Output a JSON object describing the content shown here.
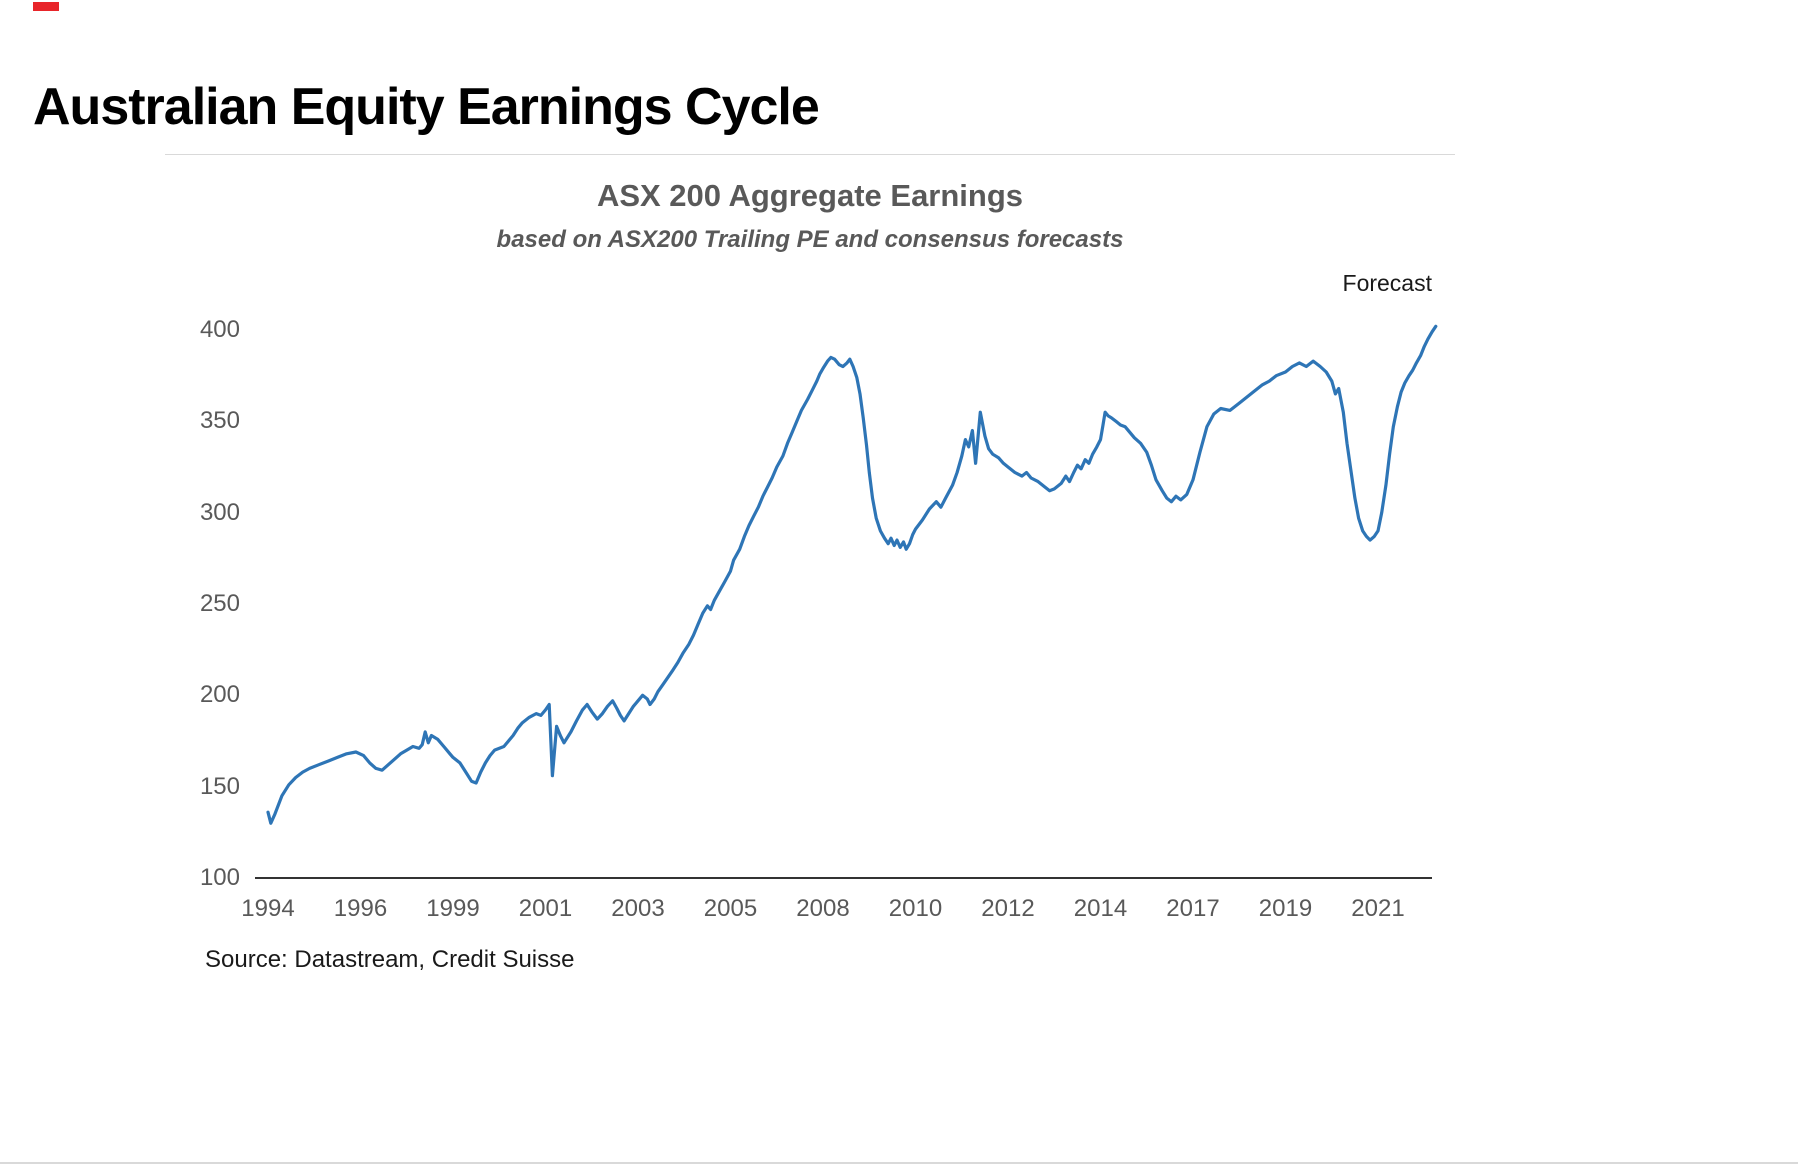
{
  "page": {
    "title": "Australian Equity Earnings Cycle",
    "source": "Source: Datastream,  Credit Suisse"
  },
  "chart_data": {
    "type": "line",
    "title": "ASX 200 Aggregate Earnings",
    "subtitle": "based on ASX200 Trailing PE and consensus forecasts",
    "forecast_label": "Forecast",
    "xlabel": "",
    "ylabel": "",
    "ylim": [
      100,
      410
    ],
    "grid": "off",
    "legend": "none",
    "line_color": "#2e75b6",
    "axis_label_color": "#595959",
    "title_color": "#595959",
    "x_tick_labels": [
      "1994",
      "1996",
      "1999",
      "2001",
      "2003",
      "2005",
      "2008",
      "2010",
      "2012",
      "2014",
      "2017",
      "2019",
      "2021"
    ],
    "x_tick_years": [
      1994,
      1996,
      1999,
      2001,
      2003,
      2005,
      2008,
      2010,
      2012,
      2014,
      2017,
      2019,
      2021
    ],
    "y_ticks": [
      100,
      150,
      200,
      250,
      300,
      350,
      400
    ],
    "series": [
      {
        "name": "ASX 200 Aggregate Earnings",
        "points": [
          [
            1994.0,
            136
          ],
          [
            1994.06,
            130
          ],
          [
            1994.15,
            135
          ],
          [
            1994.3,
            145
          ],
          [
            1994.45,
            151
          ],
          [
            1994.6,
            155
          ],
          [
            1994.75,
            158
          ],
          [
            1994.9,
            160
          ],
          [
            1995.1,
            162
          ],
          [
            1995.3,
            164
          ],
          [
            1995.5,
            166
          ],
          [
            1995.7,
            168
          ],
          [
            1995.9,
            169
          ],
          [
            1996.1,
            167
          ],
          [
            1996.3,
            163
          ],
          [
            1996.5,
            160
          ],
          [
            1996.7,
            159
          ],
          [
            1996.9,
            162
          ],
          [
            1997.1,
            165
          ],
          [
            1997.3,
            168
          ],
          [
            1997.5,
            170
          ],
          [
            1997.7,
            172
          ],
          [
            1997.9,
            171
          ],
          [
            1998.0,
            173
          ],
          [
            1998.1,
            180
          ],
          [
            1998.2,
            174
          ],
          [
            1998.3,
            178
          ],
          [
            1998.5,
            176
          ],
          [
            1998.7,
            172
          ],
          [
            1998.9,
            168
          ],
          [
            1999.0,
            166
          ],
          [
            1999.15,
            163
          ],
          [
            1999.3,
            157
          ],
          [
            1999.4,
            153
          ],
          [
            1999.5,
            152
          ],
          [
            1999.6,
            158
          ],
          [
            1999.7,
            163
          ],
          [
            1999.8,
            167
          ],
          [
            1999.9,
            170
          ],
          [
            2000.1,
            172
          ],
          [
            2000.2,
            175
          ],
          [
            2000.3,
            178
          ],
          [
            2000.4,
            182
          ],
          [
            2000.5,
            185
          ],
          [
            2000.65,
            188
          ],
          [
            2000.8,
            190
          ],
          [
            2000.9,
            189
          ],
          [
            2001.0,
            192
          ],
          [
            2001.08,
            195
          ],
          [
            2001.15,
            156
          ],
          [
            2001.24,
            183
          ],
          [
            2001.32,
            178
          ],
          [
            2001.4,
            174
          ],
          [
            2001.55,
            180
          ],
          [
            2001.67,
            186
          ],
          [
            2001.8,
            192
          ],
          [
            2001.9,
            195
          ],
          [
            2002.0,
            191
          ],
          [
            2002.12,
            187
          ],
          [
            2002.23,
            190
          ],
          [
            2002.34,
            194
          ],
          [
            2002.45,
            197
          ],
          [
            2002.54,
            193
          ],
          [
            2002.62,
            189
          ],
          [
            2002.7,
            186
          ],
          [
            2002.8,
            190
          ],
          [
            2002.9,
            194
          ],
          [
            2003.0,
            197
          ],
          [
            2003.1,
            200
          ],
          [
            2003.2,
            198
          ],
          [
            2003.26,
            195
          ],
          [
            2003.35,
            198
          ],
          [
            2003.43,
            202
          ],
          [
            2003.54,
            206
          ],
          [
            2003.65,
            210
          ],
          [
            2003.76,
            214
          ],
          [
            2003.86,
            218
          ],
          [
            2003.97,
            223
          ],
          [
            2004.1,
            228
          ],
          [
            2004.2,
            233
          ],
          [
            2004.3,
            239
          ],
          [
            2004.4,
            245
          ],
          [
            2004.5,
            249
          ],
          [
            2004.57,
            247
          ],
          [
            2004.65,
            252
          ],
          [
            2004.76,
            257
          ],
          [
            2004.87,
            262
          ],
          [
            2005.0,
            268
          ],
          [
            2005.1,
            274
          ],
          [
            2005.3,
            280
          ],
          [
            2005.45,
            287
          ],
          [
            2005.6,
            293
          ],
          [
            2005.75,
            298
          ],
          [
            2005.9,
            303
          ],
          [
            2006.05,
            309
          ],
          [
            2006.2,
            314
          ],
          [
            2006.35,
            319
          ],
          [
            2006.5,
            325
          ],
          [
            2006.7,
            331
          ],
          [
            2006.85,
            338
          ],
          [
            2007.0,
            344
          ],
          [
            2007.15,
            350
          ],
          [
            2007.3,
            356
          ],
          [
            2007.5,
            362
          ],
          [
            2007.65,
            367
          ],
          [
            2007.8,
            372
          ],
          [
            2007.9,
            376
          ],
          [
            2008.0,
            379
          ],
          [
            2008.1,
            383
          ],
          [
            2008.17,
            385
          ],
          [
            2008.25,
            384
          ],
          [
            2008.35,
            381
          ],
          [
            2008.43,
            380
          ],
          [
            2008.52,
            382
          ],
          [
            2008.58,
            384
          ],
          [
            2008.65,
            380
          ],
          [
            2008.73,
            374
          ],
          [
            2008.8,
            365
          ],
          [
            2008.87,
            352
          ],
          [
            2008.94,
            337
          ],
          [
            2009.0,
            322
          ],
          [
            2009.07,
            308
          ],
          [
            2009.15,
            297
          ],
          [
            2009.24,
            290
          ],
          [
            2009.33,
            286
          ],
          [
            2009.41,
            283
          ],
          [
            2009.47,
            286
          ],
          [
            2009.54,
            282
          ],
          [
            2009.6,
            285
          ],
          [
            2009.67,
            281
          ],
          [
            2009.74,
            284
          ],
          [
            2009.8,
            280
          ],
          [
            2009.87,
            283
          ],
          [
            2009.94,
            288
          ],
          [
            2010.0,
            291
          ],
          [
            2010.15,
            296
          ],
          [
            2010.3,
            302
          ],
          [
            2010.45,
            306
          ],
          [
            2010.55,
            303
          ],
          [
            2010.65,
            308
          ],
          [
            2010.8,
            315
          ],
          [
            2010.9,
            322
          ],
          [
            2011.0,
            331
          ],
          [
            2011.08,
            340
          ],
          [
            2011.15,
            336
          ],
          [
            2011.23,
            345
          ],
          [
            2011.3,
            327
          ],
          [
            2011.4,
            355
          ],
          [
            2011.5,
            342
          ],
          [
            2011.58,
            335
          ],
          [
            2011.67,
            332
          ],
          [
            2011.8,
            330
          ],
          [
            2011.9,
            327
          ],
          [
            2012.0,
            325
          ],
          [
            2012.15,
            322
          ],
          [
            2012.3,
            320
          ],
          [
            2012.4,
            322
          ],
          [
            2012.5,
            319
          ],
          [
            2012.65,
            317
          ],
          [
            2012.8,
            314
          ],
          [
            2012.9,
            312
          ],
          [
            2013.0,
            313
          ],
          [
            2013.15,
            316
          ],
          [
            2013.25,
            320
          ],
          [
            2013.33,
            317
          ],
          [
            2013.42,
            322
          ],
          [
            2013.5,
            326
          ],
          [
            2013.58,
            324
          ],
          [
            2013.67,
            329
          ],
          [
            2013.75,
            327
          ],
          [
            2013.83,
            332
          ],
          [
            2013.92,
            336
          ],
          [
            2014.0,
            340
          ],
          [
            2014.08,
            348
          ],
          [
            2014.15,
            355
          ],
          [
            2014.25,
            353
          ],
          [
            2014.35,
            352
          ],
          [
            2014.5,
            350
          ],
          [
            2014.65,
            348
          ],
          [
            2014.8,
            347
          ],
          [
            2014.95,
            344
          ],
          [
            2015.1,
            341
          ],
          [
            2015.3,
            338
          ],
          [
            2015.5,
            333
          ],
          [
            2015.65,
            326
          ],
          [
            2015.8,
            318
          ],
          [
            2016.0,
            312
          ],
          [
            2016.15,
            308
          ],
          [
            2016.3,
            306
          ],
          [
            2016.45,
            309
          ],
          [
            2016.6,
            307
          ],
          [
            2016.8,
            310
          ],
          [
            2017.0,
            318
          ],
          [
            2017.15,
            333
          ],
          [
            2017.3,
            347
          ],
          [
            2017.45,
            354
          ],
          [
            2017.6,
            357
          ],
          [
            2017.8,
            356
          ],
          [
            2018.0,
            360
          ],
          [
            2018.15,
            363
          ],
          [
            2018.3,
            366
          ],
          [
            2018.5,
            370
          ],
          [
            2018.65,
            372
          ],
          [
            2018.8,
            375
          ],
          [
            2019.0,
            377
          ],
          [
            2019.15,
            380
          ],
          [
            2019.3,
            382
          ],
          [
            2019.45,
            380
          ],
          [
            2019.6,
            383
          ],
          [
            2019.75,
            380
          ],
          [
            2019.88,
            377
          ],
          [
            2020.0,
            372
          ],
          [
            2020.08,
            365
          ],
          [
            2020.15,
            368
          ],
          [
            2020.25,
            355
          ],
          [
            2020.33,
            338
          ],
          [
            2020.42,
            322
          ],
          [
            2020.5,
            308
          ],
          [
            2020.58,
            297
          ],
          [
            2020.67,
            290
          ],
          [
            2020.75,
            287
          ],
          [
            2020.83,
            285
          ],
          [
            2020.92,
            287
          ],
          [
            2021.0,
            290
          ],
          [
            2021.08,
            300
          ],
          [
            2021.17,
            315
          ],
          [
            2021.25,
            332
          ],
          [
            2021.33,
            347
          ],
          [
            2021.42,
            358
          ],
          [
            2021.5,
            366
          ],
          [
            2021.58,
            371
          ],
          [
            2021.67,
            375
          ],
          [
            2021.75,
            378
          ],
          [
            2021.83,
            382
          ],
          [
            2021.92,
            386
          ],
          [
            2022.0,
            391
          ],
          [
            2022.08,
            395
          ],
          [
            2022.17,
            399
          ],
          [
            2022.25,
            402
          ]
        ]
      }
    ]
  }
}
